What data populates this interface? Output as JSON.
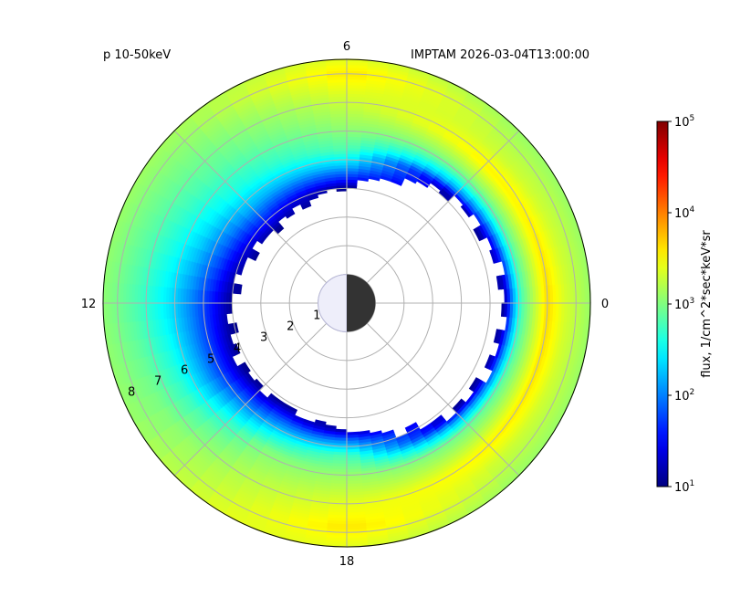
{
  "header": {
    "left": "p 10-50keV",
    "right": "IMPTAM 2026-03-04T13:00:00"
  },
  "chart_data": {
    "type": "heatmap",
    "projection": "polar",
    "angular_axis": {
      "quantity": "MLT",
      "zero_at": "right",
      "direction": "counterclockwise",
      "tick_labels": [
        "0",
        "6",
        "12",
        "18"
      ]
    },
    "radial_axis": {
      "quantity": "L",
      "range": [
        0,
        8.5
      ],
      "tick_labels": [
        "1",
        "2",
        "3",
        "4",
        "5",
        "6",
        "7",
        "8"
      ]
    },
    "grid": true,
    "earth": {
      "radius": 1,
      "day_side": "light",
      "night_side": "dark"
    },
    "colorbar": {
      "label": "flux, 1/cm^2*sec*keV*sr",
      "scale": "log",
      "range": [
        10,
        100000
      ],
      "ticks": [
        "10^1",
        "10^2",
        "10^3",
        "10^4",
        "10^5"
      ],
      "colormap": "jet",
      "position": "right"
    },
    "profiles": [
      {
        "mlt": 0,
        "inner_edge": 5.5,
        "log10_flux": [
          [
            5.5,
            1.1
          ],
          [
            5.8,
            2.1
          ],
          [
            6.1,
            2.8
          ],
          [
            6.4,
            3.1
          ],
          [
            7.0,
            3.65
          ],
          [
            7.6,
            3.35
          ],
          [
            8.5,
            3.1
          ]
        ]
      },
      {
        "mlt": 3,
        "inner_edge": 5.2,
        "log10_flux": [
          [
            5.2,
            1.1
          ],
          [
            5.5,
            2.1
          ],
          [
            5.9,
            2.8
          ],
          [
            6.2,
            3.1
          ],
          [
            6.8,
            3.55
          ],
          [
            7.4,
            3.3
          ],
          [
            8.5,
            3.1
          ]
        ]
      },
      {
        "mlt": 6,
        "inner_edge": 4.0,
        "log10_flux": [
          [
            4.0,
            1.05
          ],
          [
            4.3,
            1.6
          ],
          [
            4.8,
            2.3
          ],
          [
            5.3,
            2.8
          ],
          [
            6.0,
            3.05
          ],
          [
            7.2,
            3.35
          ],
          [
            8.0,
            3.6
          ],
          [
            8.5,
            3.4
          ]
        ]
      },
      {
        "mlt": 9,
        "inner_edge": 3.5,
        "log10_flux": [
          [
            3.5,
            1.05
          ],
          [
            4.0,
            1.6
          ],
          [
            4.7,
            2.2
          ],
          [
            5.5,
            2.6
          ],
          [
            6.5,
            2.85
          ],
          [
            7.5,
            3.0
          ],
          [
            8.5,
            3.15
          ]
        ]
      },
      {
        "mlt": 12,
        "inner_edge": 4.0,
        "log10_flux": [
          [
            4.0,
            1.05
          ],
          [
            4.6,
            1.5
          ],
          [
            5.4,
            2.0
          ],
          [
            6.2,
            2.4
          ],
          [
            7.2,
            2.75
          ],
          [
            8.0,
            2.95
          ],
          [
            8.5,
            3.05
          ]
        ]
      },
      {
        "mlt": 14,
        "inner_edge": 4.2,
        "log10_flux": [
          [
            4.2,
            1.05
          ],
          [
            4.8,
            1.6
          ],
          [
            5.6,
            2.2
          ],
          [
            6.4,
            2.7
          ],
          [
            7.4,
            3.0
          ],
          [
            8.5,
            3.1
          ]
        ]
      },
      {
        "mlt": 16,
        "inner_edge": 4.1,
        "log10_flux": [
          [
            4.1,
            1.05
          ],
          [
            4.6,
            1.8
          ],
          [
            5.2,
            2.5
          ],
          [
            5.8,
            3.0
          ],
          [
            6.8,
            3.2
          ],
          [
            8.0,
            3.35
          ],
          [
            8.5,
            3.4
          ]
        ]
      },
      {
        "mlt": 18,
        "inner_edge": 4.4,
        "log10_flux": [
          [
            4.4,
            1.1
          ],
          [
            4.8,
            2.0
          ],
          [
            5.3,
            2.8
          ],
          [
            6.0,
            3.1
          ],
          [
            7.0,
            3.4
          ],
          [
            7.8,
            3.6
          ],
          [
            8.5,
            3.4
          ]
        ]
      },
      {
        "mlt": 21,
        "inner_edge": 5.3,
        "log10_flux": [
          [
            5.3,
            1.1
          ],
          [
            5.6,
            2.1
          ],
          [
            6.0,
            2.9
          ],
          [
            6.4,
            3.15
          ],
          [
            7.0,
            3.55
          ],
          [
            7.6,
            3.3
          ],
          [
            8.5,
            3.1
          ]
        ]
      }
    ]
  }
}
